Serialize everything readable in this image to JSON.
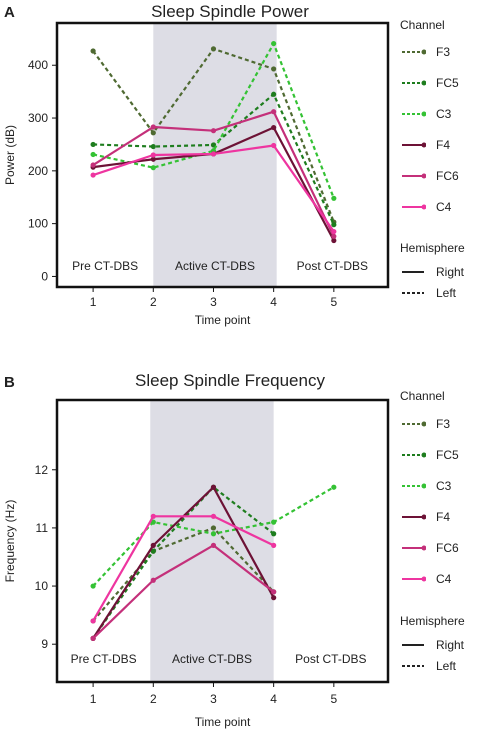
{
  "chart_data": [
    {
      "panel_letter": "A",
      "type": "line",
      "title": "Sleep Spindle Power",
      "xlabel": "Time point",
      "ylabel": "Power (dB)",
      "x": [
        1,
        2,
        3,
        4,
        5
      ],
      "xlim": [
        0.4,
        5.9
      ],
      "ylim": [
        -20,
        480
      ],
      "yticks": [
        0,
        100,
        200,
        300,
        400
      ],
      "xticks": [
        1,
        2,
        3,
        4,
        5
      ],
      "shaded_region": [
        2,
        4.05
      ],
      "shaded_color": "#dddde5",
      "phase_labels": [
        "Pre CT-DBS",
        "Active CT-DBS",
        "Post CT-DBS"
      ],
      "phase_label_y": 0,
      "series": [
        {
          "name": "F3",
          "color": "#4f6a32",
          "dash": true,
          "values": [
            427,
            272,
            431,
            393,
            103
          ]
        },
        {
          "name": "FC5",
          "color": "#1e7d1e",
          "dash": true,
          "values": [
            250,
            246,
            249,
            345,
            98
          ]
        },
        {
          "name": "C3",
          "color": "#34c234",
          "dash": true,
          "values": [
            231,
            206,
            238,
            441,
            148
          ]
        },
        {
          "name": "F4",
          "color": "#6d1236",
          "dash": false,
          "values": [
            207,
            222,
            232,
            282,
            68
          ]
        },
        {
          "name": "FC6",
          "color": "#c4307a",
          "dash": false,
          "values": [
            211,
            283,
            276,
            312,
            76
          ]
        },
        {
          "name": "C4",
          "color": "#ee35a0",
          "dash": false,
          "values": [
            192,
            230,
            232,
            248,
            85
          ]
        }
      ],
      "legend_placement": "right",
      "legend": {
        "channel_title": "Channel",
        "hemisphere_title": "Hemisphere",
        "right_label": "Right",
        "left_label": "Left"
      }
    },
    {
      "panel_letter": "B",
      "type": "line",
      "title": "Sleep Spindle Frequency",
      "xlabel": "Time point",
      "ylabel": "Frequency (Hz)",
      "x": [
        1,
        2,
        3,
        4,
        5
      ],
      "xlim": [
        0.4,
        5.9
      ],
      "ylim": [
        8.35,
        13.2
      ],
      "yticks": [
        9,
        10,
        11,
        12
      ],
      "xticks": [
        1,
        2,
        3,
        4,
        5
      ],
      "shaded_region": [
        1.95,
        4
      ],
      "shaded_color": "#dddde5",
      "phase_labels": [
        "Pre CT-DBS",
        "Active CT-DBS",
        "Post CT-DBS"
      ],
      "phase_label_y": 8.6,
      "series": [
        {
          "name": "F3",
          "color": "#4f6a32",
          "dash": true,
          "values": [
            9.4,
            10.6,
            11.0,
            9.9,
            null
          ]
        },
        {
          "name": "FC5",
          "color": "#1e7d1e",
          "dash": true,
          "values": [
            9.1,
            10.6,
            11.7,
            10.9,
            null
          ]
        },
        {
          "name": "C3",
          "color": "#34c234",
          "dash": true,
          "values": [
            10.0,
            11.1,
            10.9,
            11.1,
            11.7
          ]
        },
        {
          "name": "F4",
          "color": "#6d1236",
          "dash": false,
          "values": [
            9.1,
            10.7,
            11.7,
            9.8,
            null
          ]
        },
        {
          "name": "FC6",
          "color": "#c4307a",
          "dash": false,
          "values": [
            9.1,
            10.1,
            10.7,
            9.9,
            null
          ]
        },
        {
          "name": "C4",
          "color": "#ee35a0",
          "dash": false,
          "values": [
            9.4,
            11.2,
            11.2,
            10.7,
            null
          ]
        }
      ],
      "legend_placement": "right",
      "legend": {
        "channel_title": "Channel",
        "hemisphere_title": "Hemisphere",
        "right_label": "Right",
        "left_label": "Left"
      }
    }
  ]
}
